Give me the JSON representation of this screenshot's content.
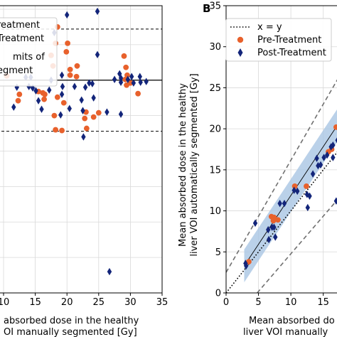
{
  "chart_data": [
    {
      "panel": "A",
      "type": "scatter",
      "xlabel_lines": [
        "absorbed dose in the healthy",
        "OI manually segmented [Gy]"
      ],
      "xlim": [
        10,
        35
      ],
      "ylim": [
        -30,
        10.5
      ],
      "x_ticks": [
        10,
        15,
        20,
        25,
        30,
        35
      ],
      "legend_entries": [
        "reatment",
        "Treatment",
        "mits of",
        "egment"
      ],
      "reference_lines": {
        "mean": 0,
        "upper_limit": 7.2,
        "lower_limit": -7.2
      },
      "series": [
        {
          "name": "Pre-Treatment",
          "marker": "circle",
          "color": "#e8612c",
          "points": [
            [
              10.5,
              0.6
            ],
            [
              12.5,
              -2.0
            ],
            [
              12.3,
              -2.9
            ],
            [
              15.5,
              -1.6
            ],
            [
              16.2,
              -1.8
            ],
            [
              16.4,
              -2.7
            ],
            [
              16.5,
              -2.0
            ],
            [
              17.5,
              3.5
            ],
            [
              17.8,
              2.0
            ],
            [
              18.2,
              5.2
            ],
            [
              18.5,
              -2.4
            ],
            [
              18.5,
              7.5
            ],
            [
              18.0,
              -5.0
            ],
            [
              18.2,
              -7.0
            ],
            [
              19.2,
              -7.1
            ],
            [
              19.5,
              -3.2
            ],
            [
              19.9,
              4.0
            ],
            [
              20.1,
              5.2
            ],
            [
              20.5,
              1.5
            ],
            [
              20.5,
              0.7
            ],
            [
              21.5,
              0.5
            ],
            [
              21.6,
              2.0
            ],
            [
              23.0,
              -4.5
            ],
            [
              22.8,
              -5.4
            ],
            [
              23.1,
              -6.8
            ],
            [
              24.2,
              -5.2
            ],
            [
              25.0,
              -4.6
            ],
            [
              29.0,
              3.4
            ],
            [
              29.3,
              1.8
            ],
            [
              29.5,
              0.7
            ],
            [
              29.2,
              0.1
            ],
            [
              29.4,
              -0.7
            ],
            [
              30.0,
              -0.4
            ],
            [
              31.2,
              -1.9
            ]
          ]
        },
        {
          "name": "Post-Treatment",
          "marker": "diamond",
          "color": "#13257a",
          "points": [
            [
              11.6,
              -3.8
            ],
            [
              12.1,
              -1.0
            ],
            [
              13.5,
              0.4
            ],
            [
              14.0,
              -0.9
            ],
            [
              14.3,
              0.4
            ],
            [
              14.6,
              -1.1
            ],
            [
              15.1,
              -1.5
            ],
            [
              15.5,
              -2.9
            ],
            [
              16.0,
              -4.1
            ],
            [
              17.2,
              -1.4
            ],
            [
              17.5,
              0.0
            ],
            [
              18.0,
              6.7
            ],
            [
              19.2,
              0.7
            ],
            [
              19.3,
              -0.9
            ],
            [
              19.2,
              -2.0
            ],
            [
              19.0,
              -4.9
            ],
            [
              20.0,
              9.2
            ],
            [
              20.4,
              -4.0
            ],
            [
              21.2,
              -0.9
            ],
            [
              22.3,
              -2.8
            ],
            [
              22.5,
              -4.3
            ],
            [
              22.6,
              -8.0
            ],
            [
              22.9,
              -1.0
            ],
            [
              23.5,
              -0.4
            ],
            [
              24.0,
              -0.5
            ],
            [
              24.2,
              -2.5
            ],
            [
              24.8,
              3.6
            ],
            [
              24.8,
              9.7
            ],
            [
              26.3,
              -4.5
            ],
            [
              27.5,
              0.1
            ],
            [
              28.3,
              0.9
            ],
            [
              28.5,
              0.3
            ],
            [
              28.5,
              -0.3
            ],
            [
              29.6,
              0.1
            ],
            [
              30.2,
              0.5
            ],
            [
              30.5,
              -0.4
            ],
            [
              31.5,
              0.5
            ],
            [
              31.6,
              -0.3
            ],
            [
              32.5,
              -0.2
            ],
            [
              26.7,
              -27.0
            ],
            [
              28.5,
              -4.8
            ]
          ]
        }
      ]
    },
    {
      "panel": "B",
      "type": "scatter",
      "panel_label": "B",
      "xlabel_lines": [
        "Mean absorbed do",
        "liver VOI manually"
      ],
      "ylabel_lines": [
        "Mean absorbed dose in the healthy",
        "liver VOI automatically segmented [Gy]"
      ],
      "xlim": [
        0,
        18
      ],
      "ylim": [
        0,
        35
      ],
      "x_ticks": [
        0,
        5,
        10,
        15
      ],
      "y_ticks": [
        0,
        5,
        10,
        15,
        20,
        25,
        30,
        35
      ],
      "legend": {
        "placement": "top-left",
        "entries": [
          {
            "label": "x = y",
            "style": "dotted-line"
          },
          {
            "label": "Pre-Treatment",
            "style": "circle",
            "color": "#e8612c"
          },
          {
            "label": "Post-Treatment",
            "style": "diamond",
            "color": "#13257a"
          }
        ]
      },
      "lines": {
        "identity": {
          "from": [
            0,
            0
          ],
          "to": [
            18,
            18
          ]
        },
        "regression": {
          "from": [
            2.8,
            3.3
          ],
          "to": [
            18,
            21.4
          ]
        },
        "upper_dashed": {
          "from": [
            0,
            2.5
          ],
          "to": [
            18,
            27.1
          ]
        },
        "lower_dashed": {
          "from": [
            4.8,
            0
          ],
          "to": [
            18,
            12.1
          ]
        },
        "band_color": "#a9c6e3"
      },
      "series": [
        {
          "name": "Pre-Treatment",
          "marker": "circle",
          "color": "#e8612c",
          "points": [
            [
              3.5,
              3.8
            ],
            [
              7.0,
              9.3
            ],
            [
              7.4,
              9.2
            ],
            [
              7.3,
              8.8
            ],
            [
              8.0,
              8.9
            ],
            [
              10.6,
              13.0
            ],
            [
              12.4,
              13.0
            ],
            [
              15.8,
              17.2
            ],
            [
              16.3,
              17.5
            ],
            [
              17.0,
              20.2
            ],
            [
              17.5,
              20.4
            ]
          ]
        },
        {
          "name": "Post-Treatment",
          "marker": "diamond",
          "color": "#13257a",
          "points": [
            [
              3.0,
              3.6
            ],
            [
              3.1,
              3.3
            ],
            [
              4.5,
              8.5
            ],
            [
              6.5,
              7.7
            ],
            [
              6.6,
              6.5
            ],
            [
              7.1,
              8.0
            ],
            [
              7.4,
              8.0
            ],
            [
              7.6,
              6.8
            ],
            [
              8.3,
              10.9
            ],
            [
              9.0,
              10.9
            ],
            [
              10.5,
              12.5
            ],
            [
              11.0,
              12.4
            ],
            [
              12.5,
              12.0
            ],
            [
              12.6,
              10.4
            ],
            [
              12.9,
              11.8
            ],
            [
              13.4,
              14.5
            ],
            [
              14.2,
              15.5
            ],
            [
              14.0,
              16.4
            ],
            [
              14.6,
              15.6
            ],
            [
              15.1,
              16.5
            ],
            [
              15.6,
              16.8
            ],
            [
              16.2,
              17.8
            ],
            [
              16.5,
              18.0
            ],
            [
              16.5,
              16.5
            ],
            [
              17.2,
              18.6
            ],
            [
              17.0,
              11.2
            ],
            [
              17.8,
              20.3
            ],
            [
              18.0,
              18.8
            ]
          ]
        }
      ]
    }
  ]
}
